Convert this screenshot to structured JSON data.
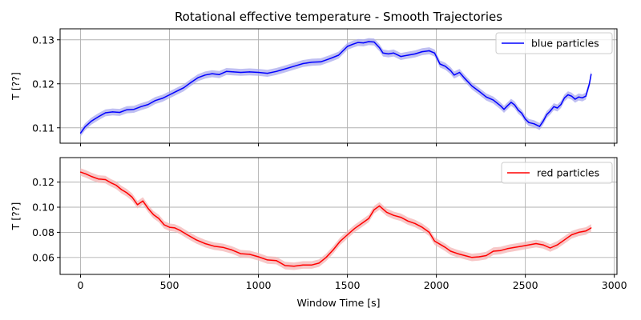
{
  "chart_data": {
    "type": "line",
    "title": "Rotational effective temperature - Smooth Trajectories",
    "xlabel": "Window Time [s]",
    "x_ticks": [
      "0",
      "500",
      "1000",
      "1500",
      "2000",
      "2500",
      "3000"
    ],
    "xlim": [
      -115,
      3015
    ],
    "panels": [
      {
        "ylabel": "T [??]",
        "ylim": [
          0.1065,
          0.1325
        ],
        "y_ticks": [
          0.11,
          0.12,
          0.13
        ],
        "y_tick_labels": [
          "0.11",
          "0.12",
          "0.13"
        ],
        "grid": true,
        "legend": "top-right",
        "band_halfwidth": 0.0008,
        "series": [
          {
            "name": "blue particles",
            "color": "#0000ff",
            "band_color": "#aaaaee",
            "x": [
              0,
              25,
              60,
              100,
              140,
              180,
              220,
              260,
              300,
              340,
              380,
              420,
              460,
              500,
              540,
              580,
              620,
              660,
              700,
              740,
              780,
              820,
              860,
              900,
              950,
              1000,
              1050,
              1100,
              1150,
              1200,
              1250,
              1300,
              1350,
              1400,
              1450,
              1500,
              1530,
              1560,
              1590,
              1620,
              1650,
              1680,
              1700,
              1730,
              1760,
              1800,
              1840,
              1880,
              1920,
              1960,
              1990,
              2020,
              2050,
              2080,
              2100,
              2130,
              2160,
              2200,
              2240,
              2280,
              2320,
              2360,
              2380,
              2400,
              2420,
              2440,
              2460,
              2480,
              2500,
              2520,
              2550,
              2580,
              2600,
              2620,
              2640,
              2660,
              2680,
              2700,
              2720,
              2740,
              2760,
              2780,
              2800,
              2820,
              2840,
              2860,
              2870
            ],
            "values": [
              0.1088,
              0.1102,
              0.1115,
              0.1125,
              0.1134,
              0.1136,
              0.1135,
              0.1141,
              0.1142,
              0.1148,
              0.1153,
              0.1162,
              0.1167,
              0.1175,
              0.1183,
              0.1191,
              0.1203,
              0.1214,
              0.122,
              0.1223,
              0.1221,
              0.1228,
              0.1227,
              0.1226,
              0.1227,
              0.1226,
              0.1224,
              0.1228,
              0.1234,
              0.124,
              0.1246,
              0.1249,
              0.125,
              0.1257,
              0.1265,
              0.1285,
              0.129,
              0.1294,
              0.1293,
              0.1296,
              0.1295,
              0.1282,
              0.127,
              0.1268,
              0.127,
              0.1262,
              0.1265,
              0.1268,
              0.1273,
              0.1275,
              0.127,
              0.1245,
              0.124,
              0.123,
              0.122,
              0.1226,
              0.1212,
              0.1195,
              0.1183,
              0.117,
              0.1163,
              0.115,
              0.1142,
              0.115,
              0.1158,
              0.1152,
              0.114,
              0.1133,
              0.112,
              0.1112,
              0.1109,
              0.1103,
              0.1115,
              0.113,
              0.1138,
              0.1148,
              0.1145,
              0.1153,
              0.1168,
              0.1175,
              0.1172,
              0.1165,
              0.117,
              0.1168,
              0.1172,
              0.12,
              0.1222
            ]
          }
        ]
      },
      {
        "ylabel": "T [??]",
        "ylim": [
          0.0465,
          0.1395
        ],
        "y_ticks": [
          0.06,
          0.08,
          0.1,
          0.12
        ],
        "y_tick_labels": [
          "0.06",
          "0.08",
          "0.10",
          "0.12"
        ],
        "grid": true,
        "legend": "top-right",
        "band_halfwidth": 0.003,
        "series": [
          {
            "name": "red particles",
            "color": "#ff0000",
            "band_color": "#f4b4b4",
            "x": [
              0,
              30,
              60,
              100,
              140,
              170,
              200,
              230,
              260,
              290,
              320,
              350,
              380,
              410,
              440,
              470,
              500,
              530,
              560,
              600,
              650,
              700,
              750,
              800,
              850,
              900,
              950,
              1000,
              1050,
              1100,
              1150,
              1200,
              1250,
              1300,
              1340,
              1380,
              1420,
              1460,
              1500,
              1540,
              1580,
              1620,
              1650,
              1680,
              1720,
              1760,
              1800,
              1840,
              1880,
              1920,
              1960,
              1990,
              2020,
              2050,
              2080,
              2120,
              2160,
              2200,
              2240,
              2280,
              2320,
              2360,
              2400,
              2440,
              2480,
              2520,
              2560,
              2600,
              2640,
              2680,
              2720,
              2760,
              2800,
              2840,
              2870
            ],
            "values": [
              0.128,
              0.1265,
              0.1245,
              0.1225,
              0.122,
              0.1195,
              0.1175,
              0.114,
              0.1115,
              0.108,
              0.102,
              0.105,
              0.099,
              0.094,
              0.091,
              0.086,
              0.084,
              0.0835,
              0.0815,
              0.078,
              0.074,
              0.071,
              0.069,
              0.068,
              0.066,
              0.063,
              0.0625,
              0.0605,
              0.058,
              0.0575,
              0.0535,
              0.053,
              0.054,
              0.054,
              0.0555,
              0.06,
              0.066,
              0.073,
              0.078,
              0.083,
              0.087,
              0.091,
              0.098,
              0.101,
              0.096,
              0.0935,
              0.092,
              0.089,
              0.087,
              0.084,
              0.08,
              0.073,
              0.0705,
              0.068,
              0.065,
              0.063,
              0.0615,
              0.06,
              0.0605,
              0.0615,
              0.065,
              0.0655,
              0.067,
              0.068,
              0.069,
              0.07,
              0.071,
              0.07,
              0.0675,
              0.07,
              0.074,
              0.078,
              0.08,
              0.081,
              0.0835
            ]
          }
        ]
      }
    ]
  }
}
